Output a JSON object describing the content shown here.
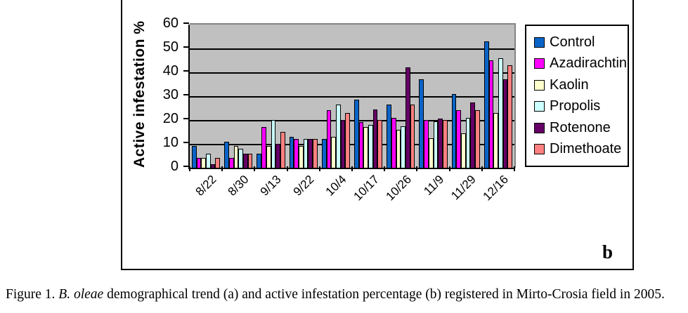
{
  "panel_label": "b",
  "caption": {
    "prefix": "Figure 1. ",
    "species_italic": "B. oleae",
    "rest": " demographical trend (a) and active infestation percentage (b) registered in Mirto-Crosia field in 2005."
  },
  "chart_data": {
    "type": "bar",
    "title": "",
    "xlabel": "",
    "ylabel": "Active infestation %",
    "ylim": [
      0,
      60
    ],
    "yticks": [
      0,
      10,
      20,
      30,
      40,
      50,
      60
    ],
    "grid": true,
    "plot_background": "#C0C0C0",
    "legend_position": "right",
    "categories": [
      "8/22",
      "8/30",
      "9/13",
      "9/22",
      "10/4",
      "10/17",
      "10/26",
      "11/9",
      "11/29",
      "12/16"
    ],
    "series": [
      {
        "name": "Control",
        "color": "#0A64C8",
        "values": [
          9,
          11,
          6,
          13,
          12,
          28.5,
          26.5,
          37,
          31,
          53
        ]
      },
      {
        "name": "Azadirachtin",
        "color": "#FF00FF",
        "values": [
          4,
          4,
          17,
          12,
          24,
          19,
          21,
          20,
          24,
          45
        ]
      },
      {
        "name": "Kaolin",
        "color": "#FFFFCC",
        "values": [
          4,
          9,
          9,
          9,
          13,
          17,
          16,
          12.5,
          14.5,
          23
        ]
      },
      {
        "name": "Propolis",
        "color": "#CCFFFF",
        "values": [
          6,
          8,
          20,
          12,
          26.5,
          18,
          17.5,
          19.5,
          21,
          46
        ]
      },
      {
        "name": "Rotenone",
        "color": "#660066",
        "values": [
          1.5,
          6,
          10,
          12,
          20,
          24.5,
          42,
          20.5,
          27.5,
          37
        ]
      },
      {
        "name": "Dimethoate",
        "color": "#FF8080",
        "values": [
          4,
          6,
          15,
          12,
          23,
          20,
          26.5,
          20,
          24,
          43
        ]
      }
    ]
  }
}
